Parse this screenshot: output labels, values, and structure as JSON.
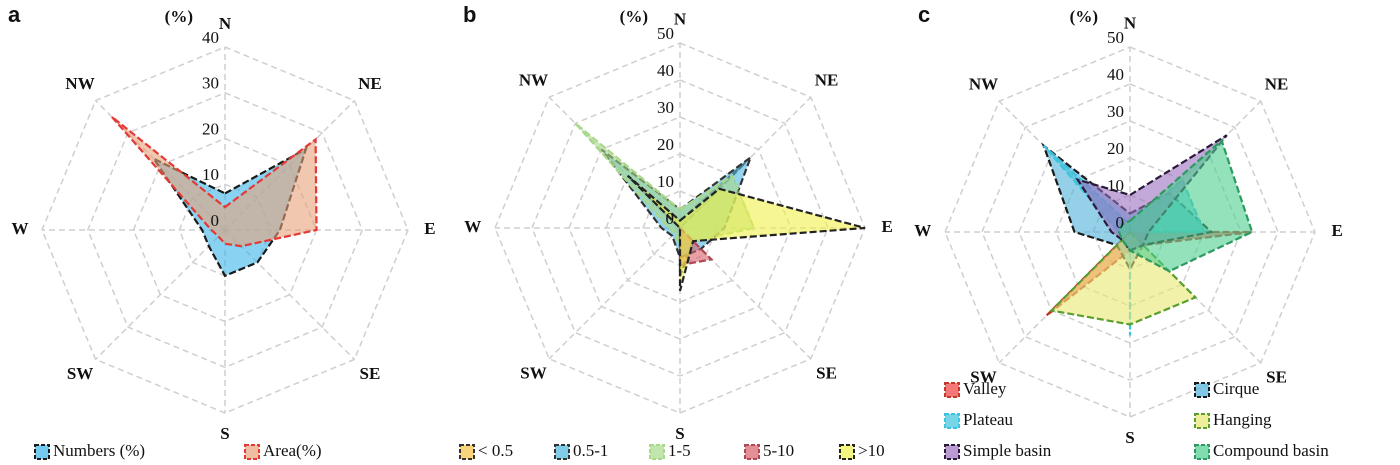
{
  "chart_data": [
    {
      "type": "radar",
      "panel": "a",
      "unit": "(%)",
      "categories": [
        "N",
        "NE",
        "E",
        "SE",
        "S",
        "SW",
        "W",
        "NW"
      ],
      "ylim": [
        0,
        40
      ],
      "yticks": [
        0,
        10,
        20,
        30,
        40
      ],
      "grid": true,
      "legend": "bottom",
      "series": [
        {
          "name": "Numbers (%)",
          "color": "#3ab4e8",
          "edge_color": "#1a1a1a",
          "values": [
            8,
            25,
            12,
            10,
            10,
            5,
            5,
            22
          ]
        },
        {
          "name": "Area(%)",
          "color": "#e8a27a",
          "edge_color": "#e53935",
          "values": [
            5,
            28,
            20,
            5,
            3,
            2,
            3,
            35
          ]
        }
      ]
    },
    {
      "type": "radar",
      "panel": "b",
      "unit": "(%)",
      "categories": [
        "N",
        "NE",
        "E",
        "SE",
        "S",
        "SW",
        "W",
        "NW"
      ],
      "ylim": [
        0,
        50
      ],
      "yticks": [
        0,
        10,
        20,
        30,
        40,
        50
      ],
      "grid": true,
      "legend": "bottom",
      "series": [
        {
          "name": "< 0.5",
          "color": "#f5c242",
          "edge_color": "#333333",
          "values": [
            2,
            25,
            0,
            5,
            13,
            0,
            0,
            15
          ]
        },
        {
          "name": "0.5-1",
          "color": "#4cb8e0",
          "edge_color": "#333333",
          "values": [
            5,
            27,
            12,
            8,
            8,
            3,
            5,
            30
          ]
        },
        {
          "name": "1-5",
          "color": "#a8d98a",
          "edge_color": "#a8d98a",
          "values": [
            5,
            20,
            20,
            5,
            5,
            2,
            3,
            40
          ]
        },
        {
          "name": "5-10",
          "color": "#d9606a",
          "edge_color": "#b04a52",
          "values": [
            0,
            0,
            0,
            12,
            10,
            0,
            0,
            0
          ]
        },
        {
          "name": ">10",
          "color": "#f0f04a",
          "edge_color": "#222222",
          "values": [
            2,
            15,
            50,
            5,
            17,
            0,
            0,
            20
          ]
        }
      ]
    },
    {
      "type": "radar",
      "panel": "c",
      "unit": "(%)",
      "categories": [
        "N",
        "NE",
        "E",
        "SE",
        "S",
        "SW",
        "W",
        "NW"
      ],
      "ylim": [
        0,
        50
      ],
      "yticks": [
        0,
        10,
        20,
        30,
        40,
        50
      ],
      "grid": true,
      "legend": "bottom",
      "series": [
        {
          "name": "Valley",
          "color": "#f23d3d",
          "edge_color": "#c0392b",
          "values": [
            2,
            0,
            33,
            5,
            5,
            32,
            0,
            0
          ]
        },
        {
          "name": "Cirque",
          "color": "#4cb0d8",
          "edge_color": "#1a1a1a",
          "values": [
            5,
            15,
            22,
            5,
            10,
            5,
            15,
            33
          ]
        },
        {
          "name": "Plateau",
          "color": "#3cc3dd",
          "edge_color": "#3cc3dd",
          "values": [
            2,
            20,
            20,
            0,
            28,
            0,
            3,
            33
          ]
        },
        {
          "name": "Hanging",
          "color": "#e8e870",
          "edge_color": "#5a9e2f",
          "values": [
            0,
            0,
            0,
            25,
            25,
            30,
            0,
            0
          ]
        },
        {
          "name": "Simple basin",
          "color": "#9b6fc0",
          "edge_color": "#2b1a3a",
          "values": [
            10,
            37,
            5,
            5,
            5,
            3,
            5,
            20
          ]
        },
        {
          "name": "Compound basin",
          "color": "#4ccf8f",
          "edge_color": "#2d9a5f",
          "values": [
            3,
            35,
            33,
            15,
            5,
            3,
            3,
            3
          ]
        }
      ]
    }
  ]
}
